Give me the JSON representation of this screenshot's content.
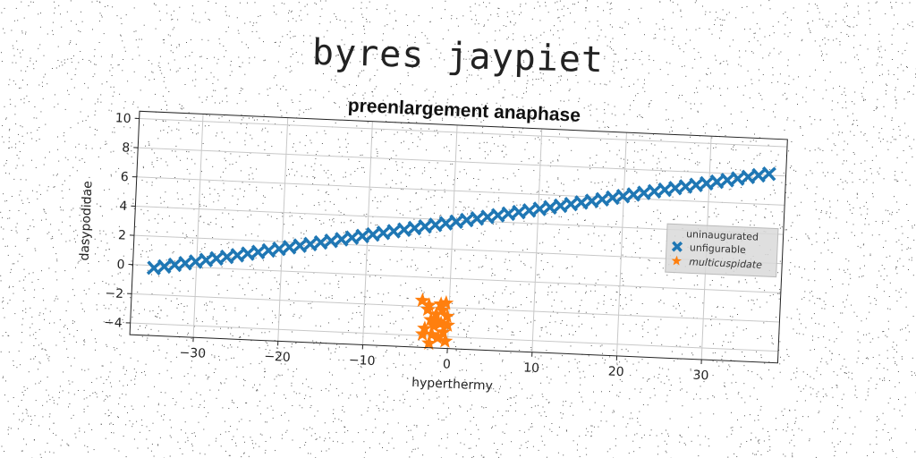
{
  "header": {
    "suptitle": "byres jaypiet"
  },
  "chart_data": {
    "type": "scatter",
    "title": "preenlargement anaphase",
    "xlabel": "hyperthermy",
    "ylabel": "dasypodidae",
    "xlim": [
      -37.5,
      39
    ],
    "ylim": [
      -4.8,
      10.5
    ],
    "xticks": [
      -30,
      -20,
      -10,
      0,
      10,
      20,
      30
    ],
    "xtick_labels": [
      "−30",
      "−20",
      "−10",
      "0",
      "10",
      "20",
      "30"
    ],
    "yticks": [
      -4,
      -2,
      0,
      2,
      4,
      6,
      8,
      10
    ],
    "ytick_labels": [
      "−4",
      "−2",
      "0",
      "2",
      "4",
      "6",
      "8",
      "10"
    ],
    "grid": true,
    "legend": {
      "title": "uninaugurated",
      "placement": "center-right",
      "entries": [
        "unfigurable",
        "multicuspidate"
      ]
    },
    "series": [
      {
        "name": "unfigurable",
        "marker": "x-filled",
        "color": "#1f77b4",
        "line": {
          "slope": 0.115,
          "intercept": 3.85,
          "x_range": [
            -35,
            37
          ],
          "count": 60
        }
      },
      {
        "name": "multicuspidate",
        "marker": "star",
        "color": "#ff7f0e",
        "points": [
          [
            -3.2,
            -1.6
          ],
          [
            -2.5,
            -2.2
          ],
          [
            -1.0,
            -1.8
          ],
          [
            -0.4,
            -1.7
          ],
          [
            -2.1,
            -2.9
          ],
          [
            -1.7,
            -3.3
          ],
          [
            -0.9,
            -3.1
          ],
          [
            -3.0,
            -3.9
          ],
          [
            -2.2,
            -4.5
          ],
          [
            -1.2,
            -4.1
          ],
          [
            -0.6,
            -3.7
          ],
          [
            -0.2,
            -2.6
          ],
          [
            -1.5,
            -2.5
          ],
          [
            -2.8,
            -3.5
          ],
          [
            -0.3,
            -4.3
          ],
          [
            -1.9,
            -3.9
          ],
          [
            -0.8,
            -2.2
          ],
          [
            -2.4,
            -1.9
          ],
          [
            -0.1,
            -3.2
          ],
          [
            -1.3,
            -3.0
          ]
        ]
      }
    ]
  }
}
